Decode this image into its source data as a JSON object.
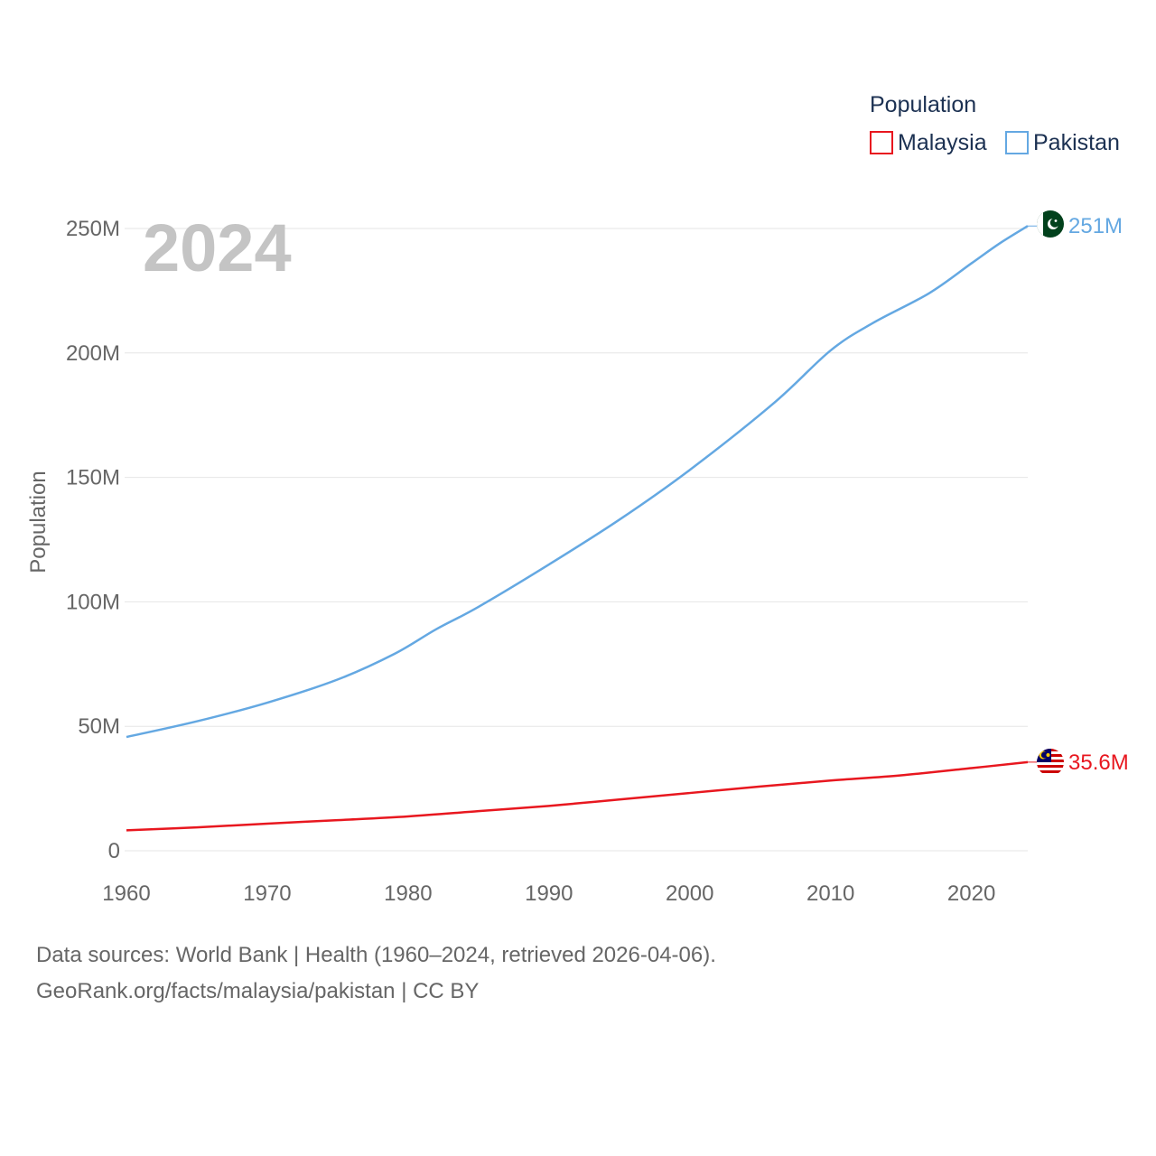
{
  "chart_data": {
    "type": "line",
    "title": "2024",
    "ylabel": "Population",
    "xlabel": "",
    "xlim": [
      1960,
      2024
    ],
    "ylim": [
      0,
      250000000
    ],
    "x_ticks": [
      "1960",
      "1970",
      "1980",
      "1990",
      "2000",
      "2010",
      "2020"
    ],
    "y_ticks": [
      "0",
      "50M",
      "100M",
      "150M",
      "200M",
      "250M"
    ],
    "legend": {
      "title": "Population",
      "position": "top-right"
    },
    "series": [
      {
        "name": "Malaysia",
        "color": "#e8171f",
        "end_label": "35.6M",
        "flag_icon": "malaysia-flag-icon",
        "points": [
          [
            1960,
            8.2
          ],
          [
            1965,
            9.4
          ],
          [
            1970,
            10.9
          ],
          [
            1975,
            12.3
          ],
          [
            1980,
            13.8
          ],
          [
            1985,
            15.9
          ],
          [
            1990,
            18.0
          ],
          [
            1995,
            20.6
          ],
          [
            2000,
            23.2
          ],
          [
            2005,
            25.8
          ],
          [
            2010,
            28.2
          ],
          [
            2015,
            30.3
          ],
          [
            2020,
            33.2
          ],
          [
            2024,
            35.6
          ]
        ]
      },
      {
        "name": "Pakistan",
        "color": "#64a8e2",
        "end_label": "251M",
        "flag_icon": "pakistan-flag-icon",
        "points": [
          [
            1960,
            45.7
          ],
          [
            1965,
            52.0
          ],
          [
            1970,
            59.5
          ],
          [
            1975,
            68.8
          ],
          [
            1979,
            79.0
          ],
          [
            1982,
            89.0
          ],
          [
            1985,
            98.0
          ],
          [
            1990,
            115.0
          ],
          [
            1995,
            133.0
          ],
          [
            2000,
            153.0
          ],
          [
            2006,
            180.0
          ],
          [
            2010,
            201.0
          ],
          [
            2013,
            212.0
          ],
          [
            2017,
            224.0
          ],
          [
            2020,
            236.0
          ],
          [
            2022,
            244.0
          ],
          [
            2024,
            251.0
          ]
        ]
      }
    ],
    "units": "millions"
  },
  "footer": {
    "line1": "Data sources: World Bank | Health (1960–2024, retrieved 2026-04-06).",
    "line2": "GeoRank.org/facts/malaysia/pakistan | CC BY"
  }
}
